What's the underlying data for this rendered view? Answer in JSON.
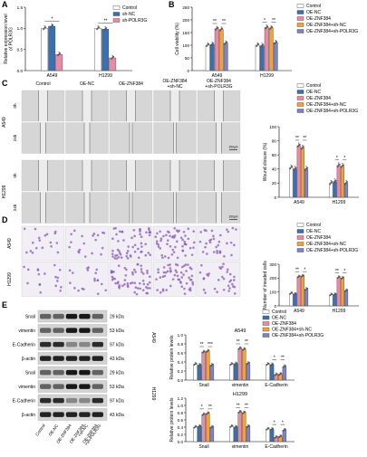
{
  "panel_labels": [
    "A",
    "B",
    "C",
    "D",
    "E"
  ],
  "colors": {
    "control": "#ffffff",
    "oe_nc": "#3a6fb0",
    "oe_znf384": "#e98ba6",
    "oe_znf384_sh_nc": "#f0a33c",
    "oe_znf384_sh_polr3g": "#7c83c6",
    "sh_nc": "#3a6fb0",
    "sh_polr3g": "#e98ba6",
    "crystal_violet": "#8a5bb8"
  },
  "groups_five": [
    "Control",
    "OE-NC",
    "OE-ZNF384",
    "OE-ZNF384+sh-NC",
    "OE-ZNF384+sh-POLR3G"
  ],
  "panel_a": {
    "chart_data": {
      "type": "bar",
      "ylabel": "Relative expression level of POLR3G",
      "categories": [
        "A549",
        "H1299"
      ],
      "series": [
        {
          "name": "Control",
          "values": [
            1.0,
            1.0
          ]
        },
        {
          "name": "sh-NC",
          "values": [
            1.05,
            0.98
          ]
        },
        {
          "name": "sh-POLR3G",
          "values": [
            0.38,
            0.3
          ]
        }
      ],
      "ylim": [
        0,
        1.5
      ],
      "yticks": [
        "0.0",
        "0.5",
        "1.0",
        "1.5"
      ],
      "significance": [
        "*",
        "**"
      ]
    }
  },
  "panel_b": {
    "chart_data": {
      "type": "bar",
      "ylabel": "Cell viability (%)",
      "categories": [
        "A549",
        "H1299"
      ],
      "series": [
        {
          "name": "Control",
          "values": [
            100,
            100
          ]
        },
        {
          "name": "OE-NC",
          "values": [
            103,
            98
          ]
        },
        {
          "name": "OE-ZNF384",
          "values": [
            165,
            170
          ]
        },
        {
          "name": "OE-ZNF384+sh-NC",
          "values": [
            162,
            168
          ]
        },
        {
          "name": "OE-ZNF384+sh-POLR3G",
          "values": [
            108,
            110
          ]
        }
      ],
      "ylim": [
        0,
        250
      ],
      "yticks": [
        "0",
        "50",
        "100",
        "150",
        "200",
        "250"
      ],
      "significance": [
        "**",
        "**",
        "*",
        "**"
      ]
    }
  },
  "panel_c": {
    "column_headers": [
      "Control",
      "OE-NC",
      "OE-ZNF384",
      "OE-ZNF384\n+sh-NC",
      "OE-ZNF384\n+sh-POLR3G"
    ],
    "row_groups": [
      "A549",
      "H1299"
    ],
    "times": [
      "0h",
      "24h"
    ],
    "scale": "200μm",
    "chart_data": {
      "type": "bar",
      "ylabel": "Wound closure (%)",
      "categories": [
        "A549",
        "H1299"
      ],
      "series": [
        {
          "name": "Control",
          "values": [
            42,
            20
          ]
        },
        {
          "name": "OE-NC",
          "values": [
            40,
            22
          ]
        },
        {
          "name": "OE-ZNF384",
          "values": [
            73,
            45
          ]
        },
        {
          "name": "OE-ZNF384+sh-NC",
          "values": [
            70,
            44
          ]
        },
        {
          "name": "OE-ZNF384+sh-POLR3G",
          "values": [
            40,
            20
          ]
        }
      ],
      "ylim": [
        0,
        100
      ],
      "yticks": [
        "0",
        "20",
        "40",
        "60",
        "80",
        "100"
      ],
      "significance": [
        "**",
        "**",
        "*",
        "*"
      ]
    }
  },
  "panel_d": {
    "row_groups": [
      "A549",
      "H1299"
    ],
    "chart_data": {
      "type": "bar",
      "ylabel": "Number of invaded cells",
      "categories": [
        "A549",
        "H1299"
      ],
      "series": [
        {
          "name": "Control",
          "values": [
            90,
            80
          ]
        },
        {
          "name": "OE-NC",
          "values": [
            85,
            82
          ]
        },
        {
          "name": "OE-ZNF384",
          "values": [
            210,
            205
          ]
        },
        {
          "name": "OE-ZNF384+sh-NC",
          "values": [
            215,
            200
          ]
        },
        {
          "name": "OE-ZNF384+sh-POLR3G",
          "values": [
            120,
            110
          ]
        }
      ],
      "ylim": [
        0,
        300
      ],
      "yticks": [
        "0",
        "100",
        "200",
        "300"
      ],
      "significance": [
        "**",
        "*",
        "**",
        "*"
      ]
    }
  },
  "panel_e": {
    "cell_lines": [
      "A549",
      "H1299"
    ],
    "proteins": [
      "Snail",
      "vimentin",
      "E-Cadherin",
      "β-actin"
    ],
    "kda": [
      "29 kDa",
      "53 kDa",
      "97 kDa",
      "43 kDa"
    ],
    "lane_labels": [
      "Control",
      "OE-NC",
      "OE-ZNF384",
      "OE-ZNF384\n+sh-NC",
      "OE-ZNF384\n+sh-POLR3G"
    ],
    "chart_data": [
      {
        "type": "bar",
        "title": "A549",
        "ylabel": "Relative protein levels",
        "categories": [
          "Snail",
          "vimentin",
          "E-Cadherin"
        ],
        "series": [
          {
            "name": "Control",
            "values": [
              0.35,
              0.35,
              0.35
            ]
          },
          {
            "name": "OE-NC",
            "values": [
              0.33,
              0.36,
              0.34
            ]
          },
          {
            "name": "OE-ZNF384",
            "values": [
              0.62,
              0.7,
              0.12
            ]
          },
          {
            "name": "OE-ZNF384+sh-NC",
            "values": [
              0.64,
              0.68,
              0.13
            ]
          },
          {
            "name": "OE-ZNF384+sh-POLR3G",
            "values": [
              0.33,
              0.37,
              0.3
            ]
          }
        ],
        "ylim": [
          0,
          1.0
        ],
        "yticks": [
          "0.0",
          "0.2",
          "0.4",
          "0.6",
          "0.8",
          "1.0"
        ],
        "significance": [
          "**",
          "***",
          "**",
          "**",
          "*",
          "**"
        ]
      },
      {
        "type": "bar",
        "title": "H1299",
        "ylabel": "Relative protein levels",
        "categories": [
          "Snail",
          "vimentin",
          "E-Cadherin"
        ],
        "series": [
          {
            "name": "Control",
            "values": [
              0.4,
              0.42,
              0.35
            ]
          },
          {
            "name": "OE-NC",
            "values": [
              0.42,
              0.4,
              0.34
            ]
          },
          {
            "name": "OE-ZNF384",
            "values": [
              0.75,
              0.82,
              0.12
            ]
          },
          {
            "name": "OE-ZNF384+sh-NC",
            "values": [
              0.78,
              0.8,
              0.14
            ]
          },
          {
            "name": "OE-ZNF384+sh-POLR3G",
            "values": [
              0.4,
              0.42,
              0.32
            ]
          }
        ],
        "ylim": [
          0,
          1.2
        ],
        "yticks": [
          "0.0",
          "0.2",
          "0.4",
          "0.6",
          "0.8",
          "1.0",
          "1.2"
        ],
        "significance": [
          "*",
          "**",
          "**",
          "**",
          "*",
          "*"
        ]
      }
    ]
  }
}
